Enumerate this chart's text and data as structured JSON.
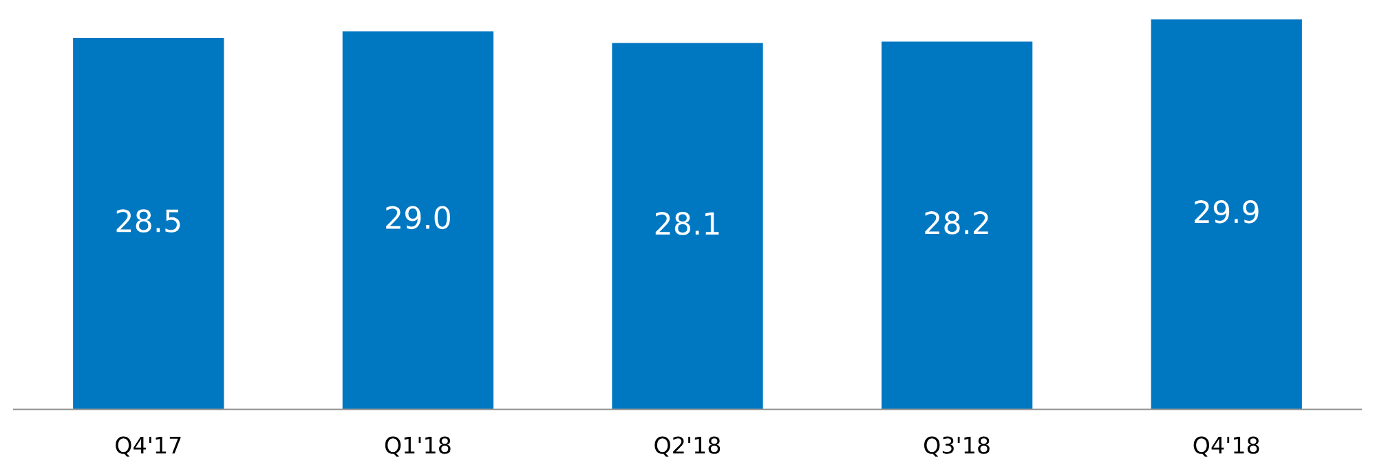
{
  "chart_data": {
    "type": "bar",
    "categories": [
      "Q4'17",
      "Q1'18",
      "Q2'18",
      "Q3'18",
      "Q4'18"
    ],
    "values": [
      28.5,
      29.0,
      28.1,
      28.2,
      29.9
    ],
    "value_labels": [
      "28.5",
      "29.0",
      "28.1",
      "28.2",
      "29.9"
    ],
    "color": "#0077c1",
    "grid": false,
    "legend": false
  }
}
